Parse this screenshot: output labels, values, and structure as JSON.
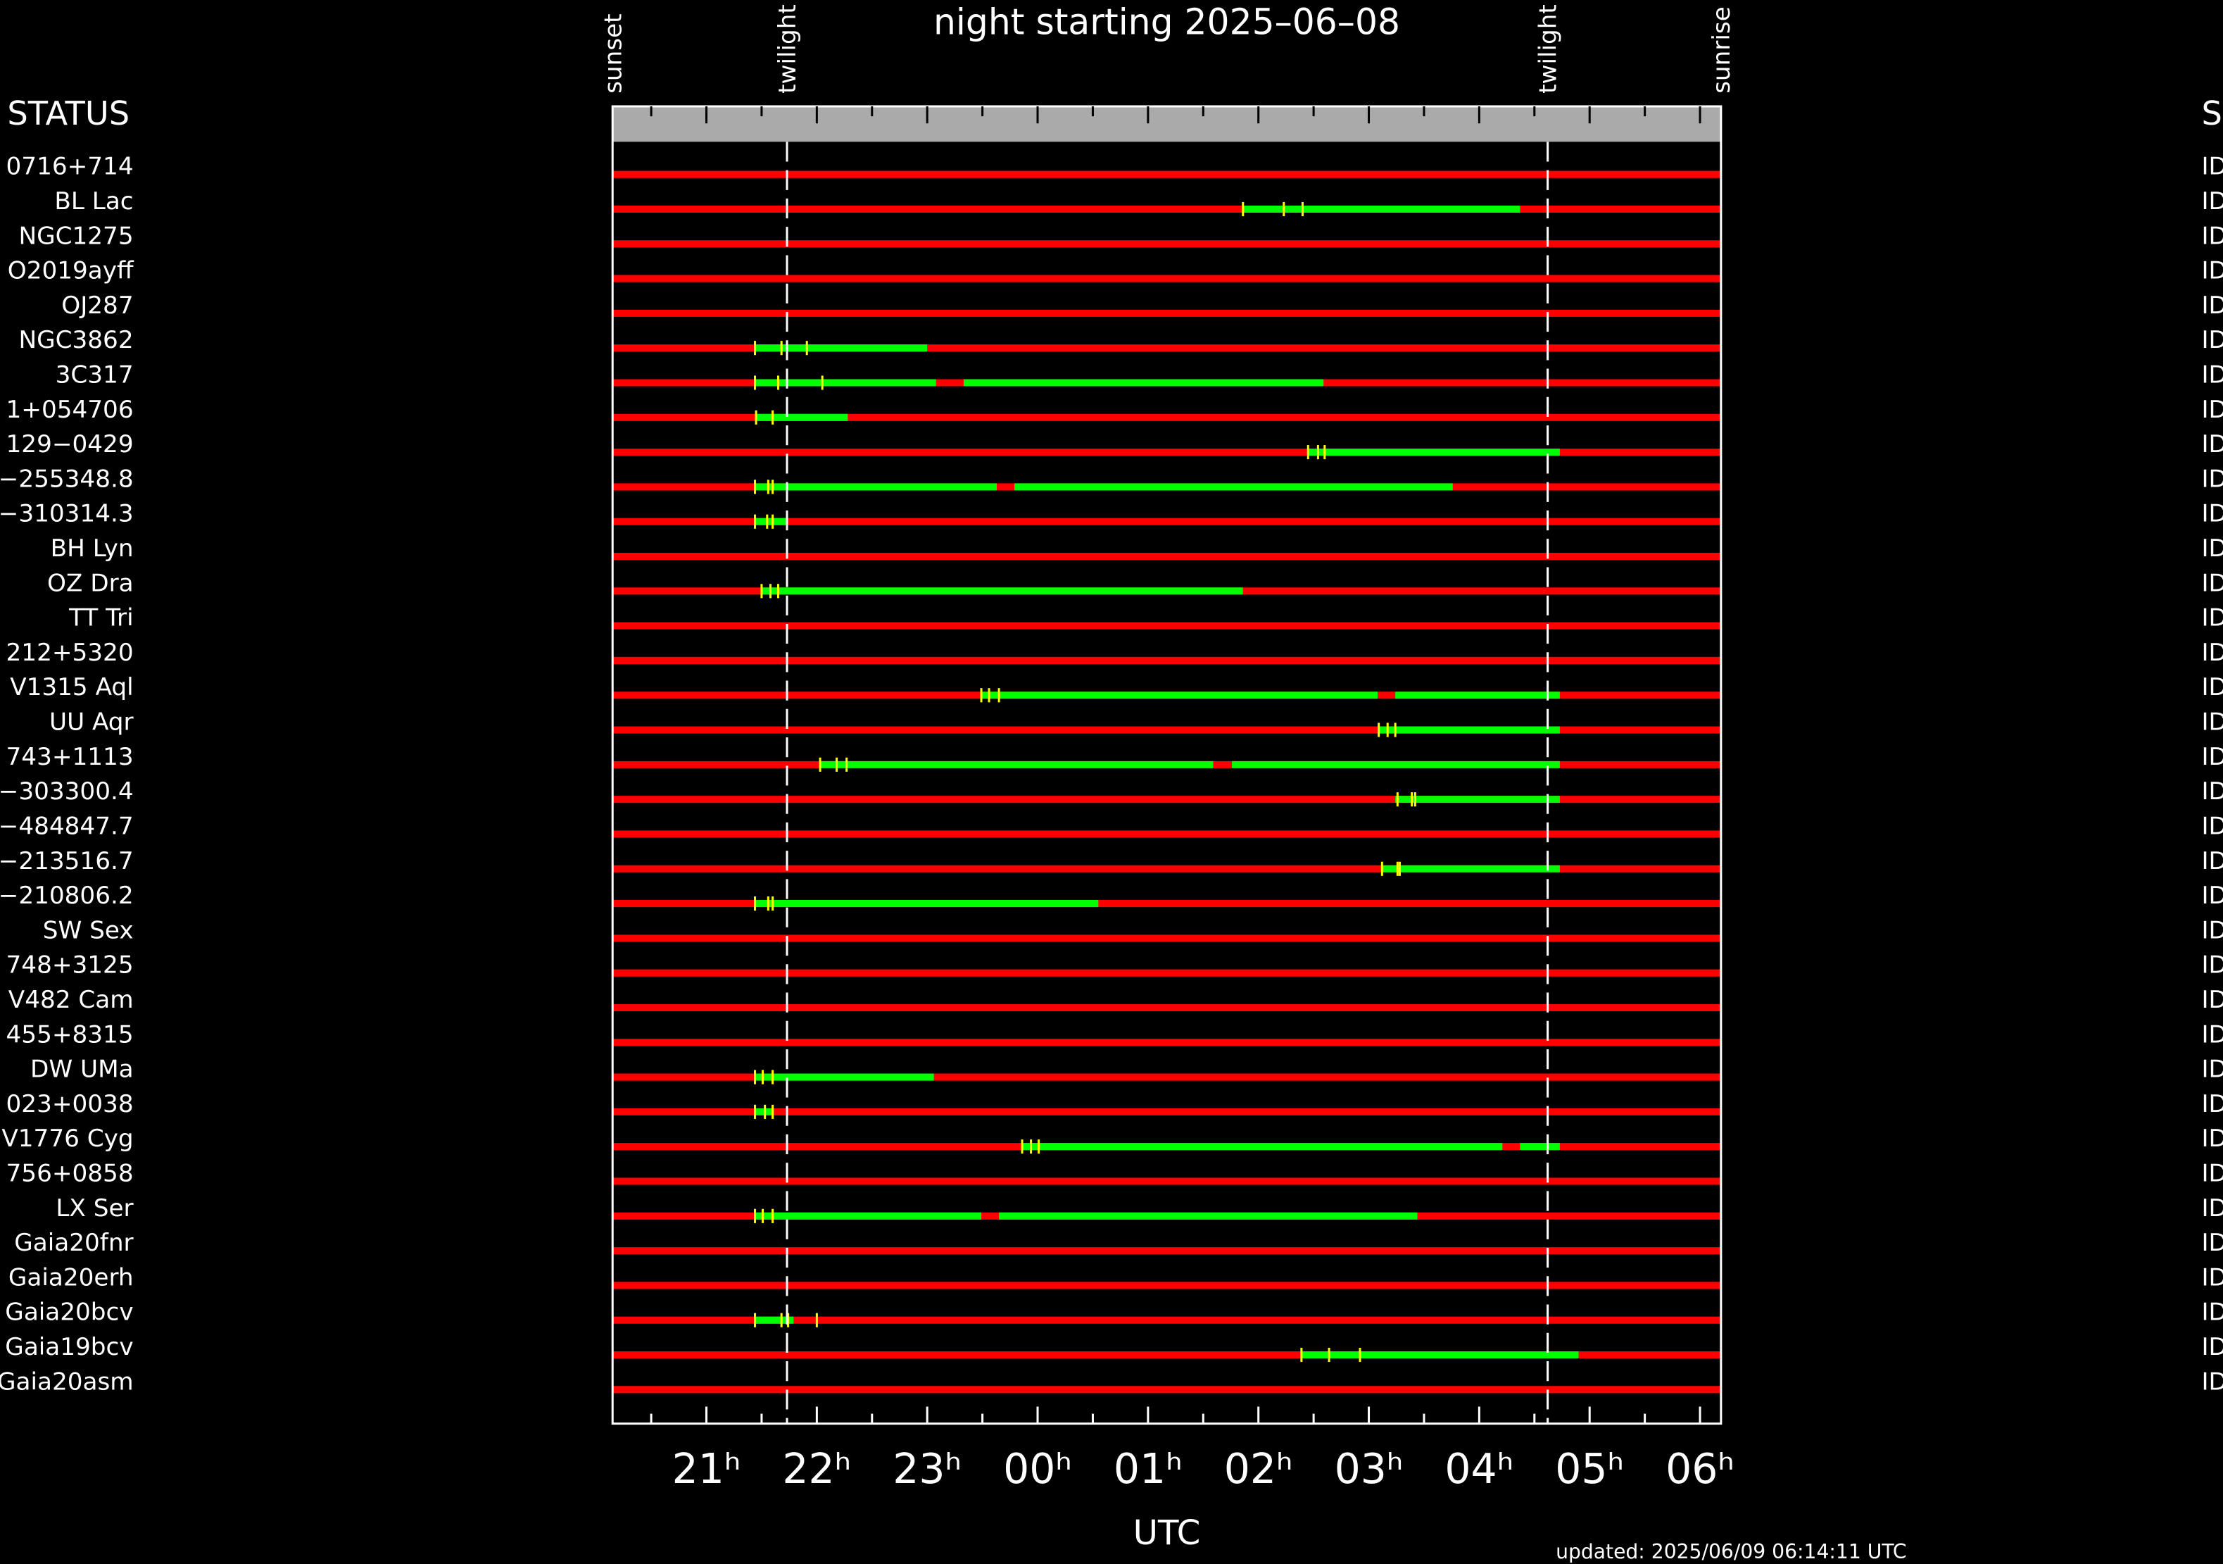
{
  "chart_data": {
    "type": "timeline",
    "title": "night starting 2025–06–08",
    "xlabel": "UTC",
    "footer": "updated: 2025/06/09 06:14:11 UTC",
    "status_header_left": "STATUS",
    "status_header_right": "S",
    "xlim": [
      20.15,
      30.19
    ],
    "xticks": [
      {
        "value": 21,
        "label": "21ʰ"
      },
      {
        "value": 22,
        "label": "22ʰ"
      },
      {
        "value": 23,
        "label": "23ʰ"
      },
      {
        "value": 24,
        "label": "00ʰ"
      },
      {
        "value": 25,
        "label": "01ʰ"
      },
      {
        "value": 26,
        "label": "02ʰ"
      },
      {
        "value": 27,
        "label": "03ʰ"
      },
      {
        "value": 28,
        "label": "04ʰ"
      },
      {
        "value": 29,
        "label": "05ʰ"
      },
      {
        "value": 30,
        "label": "06ʰ"
      }
    ],
    "xminorticks": [
      20.5,
      21.5,
      22.5,
      23.5,
      24.5,
      25.5,
      26.5,
      27.5,
      28.5,
      29.5
    ],
    "events": [
      {
        "label": "sunset",
        "x": 20.15,
        "line": false
      },
      {
        "label": "twilight",
        "x": 21.73,
        "line": true
      },
      {
        "label": "twilight",
        "x": 28.62,
        "line": true
      },
      {
        "label": "sunrise",
        "x": 30.19,
        "line": false
      }
    ],
    "colors": {
      "track": "#ff0000",
      "window": "#00ff00",
      "marker": "#ffff00",
      "band": "#aaaaaa"
    },
    "rows": [
      {
        "name": "0716+714",
        "status": "ID",
        "windows": [],
        "markers": []
      },
      {
        "name": "BL Lac",
        "status": "ID",
        "windows": [
          [
            25.86,
            28.37
          ]
        ],
        "markers": [
          25.86,
          26.23,
          26.4
        ]
      },
      {
        "name": "NGC1275",
        "status": "ID",
        "windows": [],
        "markers": []
      },
      {
        "name": "O2019ayff",
        "status": "ID",
        "windows": [],
        "markers": []
      },
      {
        "name": "OJ287",
        "status": "ID",
        "windows": [],
        "markers": []
      },
      {
        "name": "NGC3862",
        "status": "ID",
        "windows": [
          [
            21.44,
            23.0
          ]
        ],
        "markers": [
          21.44,
          21.68,
          21.91
        ]
      },
      {
        "name": "3C317",
        "status": "ID",
        "windows": [
          [
            21.44,
            23.08
          ],
          [
            23.33,
            26.59
          ]
        ],
        "markers": [
          21.44,
          21.65,
          22.05
        ]
      },
      {
        "name": "1+054706",
        "status": "ID",
        "windows": [
          [
            21.44,
            22.28
          ]
        ],
        "markers": [
          21.45,
          21.6
        ]
      },
      {
        "name": "129−0429",
        "status": "ID",
        "windows": [
          [
            26.45,
            28.73
          ]
        ],
        "markers": [
          26.45,
          26.54,
          26.6
        ]
      },
      {
        "name": "−255348.8",
        "status": "ID",
        "windows": [
          [
            21.44,
            23.63
          ],
          [
            23.79,
            27.76
          ]
        ],
        "markers": [
          21.44,
          21.56,
          21.6
        ]
      },
      {
        "name": "−310314.3",
        "status": "ID",
        "windows": [
          [
            21.44,
            21.73
          ]
        ],
        "markers": [
          21.44,
          21.55,
          21.6
        ]
      },
      {
        "name": "BH Lyn",
        "status": "ID",
        "windows": [],
        "markers": []
      },
      {
        "name": "OZ Dra",
        "status": "ID",
        "windows": [
          [
            21.5,
            25.86
          ]
        ],
        "markers": [
          21.5,
          21.58,
          21.65
        ]
      },
      {
        "name": "TT Tri",
        "status": "ID",
        "windows": [],
        "markers": []
      },
      {
        "name": "212+5320",
        "status": "ID",
        "windows": [],
        "markers": []
      },
      {
        "name": "V1315 Aql",
        "status": "ID",
        "windows": [
          [
            23.49,
            27.08
          ],
          [
            27.24,
            28.73
          ]
        ],
        "markers": [
          23.49,
          23.56,
          23.65
        ]
      },
      {
        "name": "UU Aqr",
        "status": "ID",
        "windows": [
          [
            27.08,
            28.73
          ]
        ],
        "markers": [
          27.09,
          27.17,
          27.24
        ]
      },
      {
        "name": "743+1113",
        "status": "ID",
        "windows": [
          [
            22.03,
            25.59
          ],
          [
            25.76,
            28.73
          ]
        ],
        "markers": [
          22.03,
          22.18,
          22.27
        ]
      },
      {
        "name": "−303300.4",
        "status": "ID",
        "windows": [
          [
            27.24,
            28.73
          ]
        ],
        "markers": [
          27.26,
          27.39,
          27.42
        ]
      },
      {
        "name": "−484847.7",
        "status": "ID",
        "windows": [],
        "markers": []
      },
      {
        "name": "−213516.7",
        "status": "ID",
        "windows": [
          [
            27.12,
            28.73
          ]
        ],
        "markers": [
          27.12,
          27.26,
          27.28
        ]
      },
      {
        "name": "−210806.2",
        "status": "ID",
        "windows": [
          [
            21.44,
            24.55
          ]
        ],
        "markers": [
          21.44,
          21.56,
          21.6
        ]
      },
      {
        "name": "SW Sex",
        "status": "ID",
        "windows": [],
        "markers": []
      },
      {
        "name": "748+3125",
        "status": "ID",
        "windows": [],
        "markers": []
      },
      {
        "name": "V482 Cam",
        "status": "ID",
        "windows": [],
        "markers": []
      },
      {
        "name": "455+8315",
        "status": "ID",
        "windows": [],
        "markers": []
      },
      {
        "name": "DW UMa",
        "status": "ID",
        "windows": [
          [
            21.44,
            23.06
          ]
        ],
        "markers": [
          21.44,
          21.51,
          21.6
        ]
      },
      {
        "name": "023+0038",
        "status": "ID",
        "windows": [
          [
            21.44,
            21.6
          ]
        ],
        "markers": [
          21.44,
          21.53,
          21.6
        ]
      },
      {
        "name": "V1776 Cyg",
        "status": "ID",
        "windows": [
          [
            23.86,
            28.21
          ],
          [
            28.37,
            28.73
          ]
        ],
        "markers": [
          23.86,
          23.94,
          24.01
        ]
      },
      {
        "name": "756+0858",
        "status": "ID",
        "windows": [],
        "markers": []
      },
      {
        "name": "LX Ser",
        "status": "ID",
        "windows": [
          [
            21.44,
            23.49
          ],
          [
            23.65,
            27.44
          ]
        ],
        "markers": [
          21.44,
          21.51,
          21.6
        ]
      },
      {
        "name": "Gaia20fnr",
        "status": "ID",
        "windows": [],
        "markers": []
      },
      {
        "name": "Gaia20erh",
        "status": "ID",
        "windows": [],
        "markers": []
      },
      {
        "name": "Gaia20bcv",
        "status": "ID",
        "windows": [
          [
            21.44,
            21.79
          ]
        ],
        "markers": [
          21.44,
          21.68,
          21.74,
          22.0
        ]
      },
      {
        "name": "Gaia19bcv",
        "status": "ID",
        "windows": [
          [
            26.39,
            28.9
          ]
        ],
        "markers": [
          26.39,
          26.64,
          26.92
        ]
      },
      {
        "name": "Gaia20asm",
        "status": "ID",
        "windows": [],
        "markers": []
      }
    ]
  }
}
